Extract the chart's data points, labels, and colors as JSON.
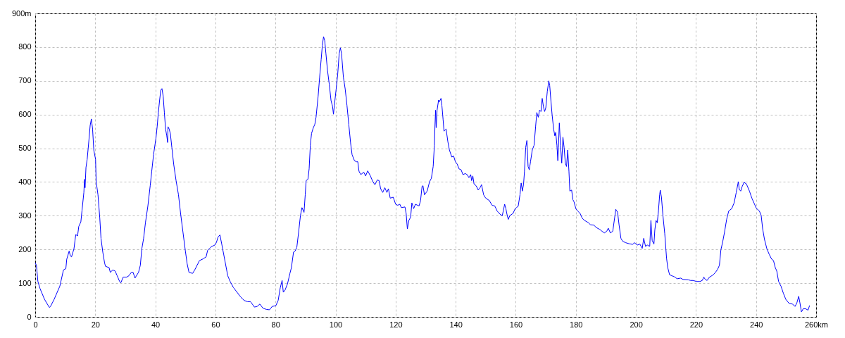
{
  "chart_data": {
    "type": "line",
    "x": [
      0,
      0.4,
      0.9,
      1.6,
      3.1,
      4.7,
      5.1,
      6.3,
      8.2,
      9.4,
      10.2,
      10.5,
      11.3,
      11.7,
      12.1,
      12.9,
      13.5,
      14.1,
      14.5,
      15.2,
      15.6,
      16.2,
      16.4,
      16.6,
      16.9,
      17.3,
      17.9,
      18.3,
      18.7,
      19.1,
      19.5,
      20.1,
      20.3,
      20.9,
      21.5,
      21.9,
      22.5,
      23.1,
      23.4,
      24.6,
      25.0,
      25.8,
      26.6,
      27.3,
      28.1,
      28.5,
      29.3,
      30.5,
      31.2,
      32.0,
      32.6,
      33.2,
      34.4,
      35.0,
      35.5,
      36.1,
      36.7,
      37.5,
      38.3,
      38.8,
      39.4,
      40.2,
      40.6,
      41.0,
      41.4,
      41.8,
      42.2,
      42.6,
      43.0,
      43.4,
      43.8,
      44.1,
      44.2,
      44.6,
      45.0,
      45.5,
      46.1,
      46.9,
      47.7,
      48.4,
      49.2,
      50.0,
      50.6,
      51.2,
      52.4,
      53.1,
      53.9,
      54.7,
      55.9,
      56.9,
      57.4,
      58.6,
      59.8,
      60.3,
      60.9,
      61.5,
      62.1,
      62.7,
      63.3,
      64.1,
      64.9,
      66.0,
      67.2,
      68.4,
      69.5,
      70.7,
      71.7,
      73.0,
      73.9,
      74.8,
      75.8,
      77.0,
      78.0,
      78.9,
      80.1,
      80.9,
      81.6,
      82.2,
      82.6,
      83.2,
      84.0,
      84.8,
      85.3,
      86.0,
      86.5,
      87.1,
      87.7,
      88.3,
      88.8,
      89.5,
      89.9,
      90.2,
      90.8,
      91.2,
      91.6,
      92.0,
      92.6,
      93.1,
      93.5,
      94.2,
      94.7,
      95.2,
      95.6,
      96.0,
      96.4,
      96.8,
      97.3,
      97.9,
      98.5,
      99.0,
      99.3,
      99.6,
      100.2,
      100.7,
      101.2,
      101.6,
      102.0,
      102.6,
      103.2,
      103.8,
      104.4,
      105.0,
      105.5,
      106.3,
      107.0,
      107.4,
      107.8,
      108.4,
      109.4,
      110.0,
      110.7,
      111.6,
      112.4,
      113.1,
      113.9,
      114.5,
      115.0,
      115.7,
      116.4,
      117.1,
      117.6,
      118.2,
      119.2,
      120.0,
      120.7,
      121.4,
      121.9,
      123.1,
      123.5,
      123.9,
      124.4,
      125.0,
      125.4,
      126.0,
      126.6,
      127.8,
      128.3,
      128.8,
      129.1,
      129.6,
      130.5,
      131.3,
      131.9,
      132.5,
      132.9,
      133.1,
      133.3,
      133.5,
      133.8,
      134.3,
      134.6,
      135.1,
      135.4,
      135.8,
      136.1,
      136.8,
      137.4,
      137.9,
      138.7,
      139.3,
      139.9,
      140.5,
      141.1,
      141.8,
      142.4,
      143.2,
      143.8,
      144.4,
      145.0,
      145.3,
      145.7,
      146.1,
      146.8,
      147.5,
      148.1,
      148.6,
      149.3,
      150.0,
      151.2,
      152.1,
      153.0,
      153.8,
      154.7,
      155.5,
      155.9,
      156.3,
      156.7,
      157.1,
      157.5,
      158.0,
      159.1,
      159.8,
      160.2,
      160.8,
      161.4,
      161.8,
      162.2,
      162.6,
      162.9,
      163.3,
      163.7,
      164.1,
      164.5,
      164.9,
      165.5,
      166.1,
      166.6,
      167.0,
      167.5,
      167.9,
      168.4,
      168.8,
      169.2,
      169.6,
      170.0,
      170.5,
      171.0,
      171.3,
      171.7,
      172.1,
      172.6,
      173.0,
      173.3,
      173.7,
      174.0,
      174.2,
      174.5,
      174.9,
      175.3,
      175.7,
      176.1,
      176.5,
      176.9,
      177.3,
      177.7,
      178.0,
      178.6,
      179.0,
      179.4,
      180.0,
      180.6,
      181.4,
      182.1,
      182.9,
      184.1,
      184.9,
      186.0,
      186.8,
      188.0,
      188.7,
      189.5,
      190.3,
      190.8,
      191.5,
      192.3,
      192.9,
      193.3,
      193.9,
      194.4,
      195.0,
      195.6,
      196.6,
      197.7,
      198.9,
      199.5,
      200.5,
      201.3,
      202.1,
      202.6,
      203.2,
      203.8,
      204.6,
      205.0,
      205.4,
      206.0,
      206.3,
      206.7,
      207.1,
      207.5,
      207.9,
      208.1,
      208.5,
      209.0,
      209.6,
      210.2,
      210.6,
      211.2,
      212.2,
      213.0,
      213.7,
      214.9,
      215.7,
      217.4,
      218.2,
      219.0,
      220.2,
      221.3,
      222.1,
      222.6,
      223.1,
      223.7,
      224.4,
      225.6,
      226.4,
      227.2,
      227.8,
      228.3,
      228.9,
      229.5,
      230.2,
      230.9,
      231.9,
      232.7,
      233.4,
      234.1,
      234.4,
      234.9,
      235.4,
      236.0,
      236.8,
      237.8,
      238.6,
      239.3,
      240.1,
      241.1,
      241.7,
      242.2,
      242.8,
      243.6,
      244.4,
      245.2,
      245.8,
      246.4,
      246.9,
      247.5,
      248.3,
      249.1,
      249.9,
      251.0,
      252.1,
      253.0,
      253.6,
      254.2,
      254.6,
      255.1,
      255.7,
      256.5,
      257.3,
      257.8
    ],
    "values": [
      160,
      153,
      105,
      84,
      52,
      28,
      31,
      52,
      91,
      139,
      143,
      171,
      195,
      181,
      178,
      202,
      244,
      240,
      268,
      282,
      317,
      369,
      408,
      383,
      443,
      467,
      526,
      568,
      587,
      557,
      495,
      467,
      401,
      362,
      293,
      233,
      192,
      160,
      150,
      146,
      132,
      139,
      136,
      122,
      105,
      101,
      118,
      118,
      122,
      132,
      132,
      115,
      132,
      153,
      202,
      233,
      279,
      328,
      390,
      432,
      481,
      530,
      564,
      606,
      641,
      672,
      677,
      655,
      606,
      557,
      537,
      517,
      564,
      557,
      543,
      502,
      453,
      404,
      362,
      307,
      251,
      195,
      157,
      132,
      129,
      139,
      153,
      167,
      172,
      178,
      197,
      208,
      213,
      220,
      237,
      243,
      216,
      188,
      160,
      122,
      105,
      87,
      73,
      59,
      49,
      45,
      45,
      29,
      31,
      38,
      26,
      22,
      21,
      31,
      33,
      49,
      87,
      108,
      73,
      80,
      98,
      129,
      146,
      192,
      195,
      206,
      251,
      300,
      324,
      310,
      362,
      404,
      408,
      439,
      509,
      544,
      561,
      571,
      592,
      655,
      711,
      763,
      805,
      831,
      819,
      780,
      732,
      690,
      641,
      624,
      601,
      627,
      676,
      718,
      780,
      798,
      780,
      711,
      676,
      627,
      571,
      516,
      481,
      463,
      460,
      460,
      432,
      422,
      429,
      418,
      433,
      418,
      401,
      392,
      406,
      404,
      380,
      369,
      383,
      369,
      380,
      352,
      355,
      334,
      331,
      334,
      324,
      326,
      307,
      261,
      286,
      296,
      338,
      321,
      334,
      329,
      345,
      387,
      389,
      362,
      373,
      401,
      411,
      446,
      509,
      568,
      613,
      561,
      613,
      643,
      638,
      648,
      627,
      585,
      551,
      557,
      519,
      495,
      474,
      477,
      460,
      453,
      439,
      436,
      422,
      425,
      422,
      413,
      422,
      404,
      418,
      394,
      389,
      376,
      383,
      392,
      362,
      352,
      345,
      331,
      329,
      314,
      305,
      300,
      317,
      334,
      321,
      303,
      289,
      300,
      307,
      321,
      324,
      328,
      362,
      397,
      373,
      394,
      432,
      502,
      523,
      446,
      436,
      460,
      495,
      509,
      564,
      606,
      592,
      613,
      609,
      648,
      624,
      609,
      620,
      669,
      700,
      686,
      641,
      599,
      557,
      537,
      547,
      509,
      463,
      502,
      575,
      509,
      456,
      533,
      502,
      456,
      446,
      495,
      432,
      373,
      376,
      348,
      341,
      321,
      314,
      307,
      293,
      286,
      280,
      273,
      272,
      265,
      259,
      254,
      249,
      254,
      263,
      249,
      254,
      293,
      319,
      310,
      272,
      233,
      224,
      220,
      217,
      215,
      220,
      213,
      216,
      203,
      233,
      209,
      213,
      209,
      286,
      227,
      216,
      258,
      286,
      279,
      314,
      362,
      376,
      355,
      300,
      247,
      174,
      146,
      125,
      121,
      118,
      113,
      115,
      111,
      110,
      108,
      108,
      105,
      105,
      108,
      118,
      111,
      108,
      117,
      124,
      131,
      141,
      153,
      199,
      223,
      251,
      289,
      314,
      321,
      338,
      369,
      401,
      378,
      373,
      387,
      399,
      394,
      373,
      352,
      338,
      322,
      314,
      301,
      261,
      230,
      202,
      185,
      171,
      167,
      146,
      136,
      105,
      91,
      70,
      52,
      40,
      38,
      31,
      42,
      61,
      42,
      15,
      24,
      24,
      20,
      33
    ],
    "color": "#0000ff",
    "xlim": [
      0,
      260
    ],
    "ylim": [
      0,
      900
    ],
    "xticks": [
      0,
      20,
      40,
      60,
      80,
      100,
      120,
      140,
      160,
      180,
      200,
      220,
      240,
      {
        "value": 260,
        "label": "260km"
      }
    ],
    "yticks": [
      0,
      100,
      200,
      300,
      400,
      500,
      600,
      700,
      800,
      {
        "value": 900,
        "label": "900m"
      }
    ],
    "grid": true
  }
}
